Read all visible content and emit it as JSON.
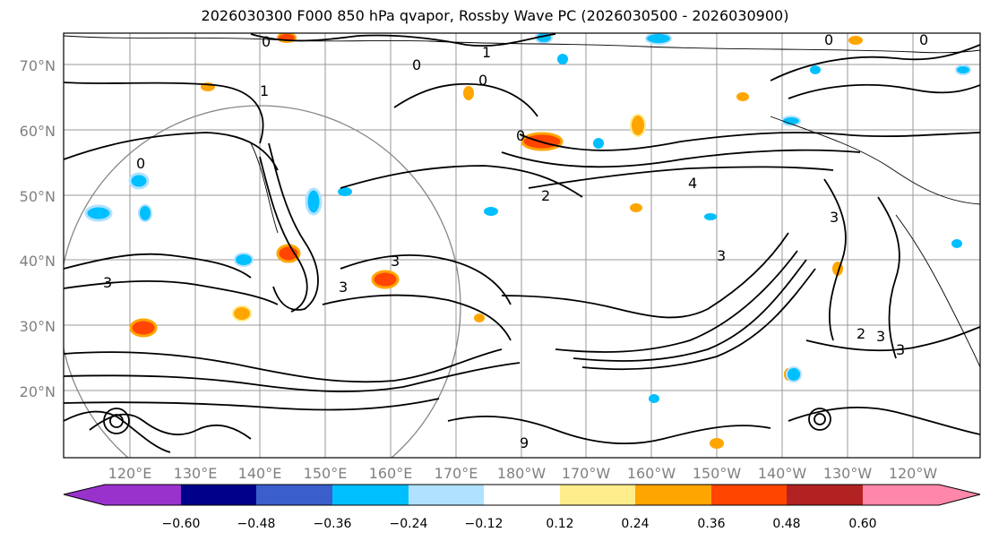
{
  "title": "2026030300 F000 850 hPa qvapor, Rossby Wave PC (2026030500 - 2026030900)",
  "map": {
    "lat_labels": [
      "70°N",
      "60°N",
      "50°N",
      "40°N",
      "30°N",
      "20°N"
    ],
    "lon_labels": [
      "120°E",
      "130°E",
      "140°E",
      "150°E",
      "160°E",
      "170°E",
      "180°W",
      "170°W",
      "160°W",
      "150°W",
      "140°W",
      "130°W",
      "120°W"
    ],
    "contour_labels": [
      "0",
      "1",
      "0",
      "0",
      "0",
      "2",
      "4",
      "3",
      "3",
      "3",
      "3",
      "3",
      "2",
      "3",
      "3",
      "0",
      "9",
      "0",
      "0",
      "1"
    ],
    "label_color": "#808080"
  },
  "colorbar": {
    "ticks": [
      "−0.60",
      "−0.48",
      "−0.36",
      "−0.24",
      "−0.12",
      "0.12",
      "0.24",
      "0.36",
      "0.48",
      "0.60"
    ],
    "colors": [
      "#9932cc",
      "#00008b",
      "#3a5ecc",
      "#00bfff",
      "#b0e2ff",
      "#ffffff",
      "#ffec8b",
      "#ffa500",
      "#ff4500",
      "#b22222",
      "#ff88aa"
    ]
  }
}
